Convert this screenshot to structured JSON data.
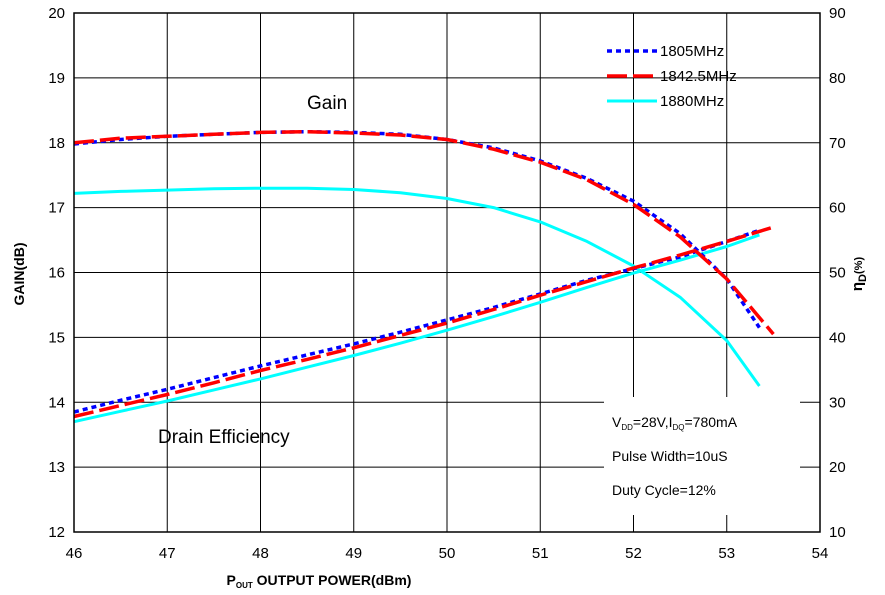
{
  "chart_data": {
    "type": "line",
    "title": "",
    "xlabel": {
      "main": "P",
      "sub": "OUT",
      "rest": " OUTPUT POWER(dBm)"
    },
    "ylabel_left": "GAIN(dB)",
    "ylabel_right": {
      "main": "η",
      "sub": "D",
      "rest": "(%)"
    },
    "xlim": [
      46,
      54
    ],
    "ylim_left": [
      12,
      20
    ],
    "ylim_right": [
      10,
      90
    ],
    "x_ticks": [
      "46",
      "47",
      "48",
      "49",
      "50",
      "51",
      "52",
      "53",
      "54"
    ],
    "y_left_ticks": [
      "12",
      "13",
      "14",
      "15",
      "16",
      "17",
      "18",
      "19",
      "20"
    ],
    "y_right_ticks": [
      "10",
      "20",
      "30",
      "40",
      "50",
      "60",
      "70",
      "80",
      "90"
    ],
    "grid": true,
    "legend_position": "top-right",
    "annotations": {
      "gain": "Gain",
      "efficiency": "Drain Efficiency"
    },
    "conditions": [
      {
        "parts": [
          {
            "t": "V",
            "s": false
          },
          {
            "t": "DD",
            "s": true
          },
          {
            "t": "=28V,I",
            "s": false
          },
          {
            "t": "DQ",
            "s": true
          },
          {
            "t": "=780mA",
            "s": false
          }
        ]
      },
      {
        "parts": [
          {
            "t": "Pulse Width=10uS",
            "s": false
          }
        ]
      },
      {
        "parts": [
          {
            "t": "Duty Cycle=12%",
            "s": false
          }
        ]
      }
    ],
    "series": [
      {
        "name": "1805MHz",
        "color": "#0000ff",
        "style": "dotted",
        "gain": [
          [
            46,
            17.98
          ],
          [
            46.5,
            18.05
          ],
          [
            47,
            18.1
          ],
          [
            47.5,
            18.13
          ],
          [
            48,
            18.16
          ],
          [
            48.5,
            18.17
          ],
          [
            49,
            18.16
          ],
          [
            49.5,
            18.13
          ],
          [
            50,
            18.05
          ],
          [
            50.5,
            17.92
          ],
          [
            51,
            17.72
          ],
          [
            51.5,
            17.45
          ],
          [
            52,
            17.1
          ],
          [
            52.5,
            16.6
          ],
          [
            53,
            15.9
          ],
          [
            53.35,
            15.15
          ]
        ],
        "efficiency": [
          [
            46,
            28.5
          ],
          [
            46.5,
            30.3
          ],
          [
            47,
            32.0
          ],
          [
            47.5,
            33.8
          ],
          [
            48,
            35.6
          ],
          [
            48.5,
            37.3
          ],
          [
            49,
            39.0
          ],
          [
            49.5,
            40.8
          ],
          [
            50,
            42.7
          ],
          [
            50.5,
            44.6
          ],
          [
            51,
            46.7
          ],
          [
            51.5,
            48.8
          ],
          [
            52,
            50.6
          ],
          [
            52.5,
            52.4
          ],
          [
            53,
            54.8
          ],
          [
            53.35,
            56.5
          ]
        ]
      },
      {
        "name": "1842.5MHz",
        "color": "#ff0000",
        "style": "dashed",
        "gain": [
          [
            46,
            18.0
          ],
          [
            46.5,
            18.07
          ],
          [
            47,
            18.1
          ],
          [
            47.5,
            18.13
          ],
          [
            48,
            18.16
          ],
          [
            48.5,
            18.17
          ],
          [
            49,
            18.15
          ],
          [
            49.5,
            18.12
          ],
          [
            50,
            18.05
          ],
          [
            50.5,
            17.9
          ],
          [
            51,
            17.7
          ],
          [
            51.5,
            17.43
          ],
          [
            52,
            17.05
          ],
          [
            52.5,
            16.55
          ],
          [
            53,
            15.9
          ],
          [
            53.5,
            15.05
          ]
        ],
        "efficiency": [
          [
            46,
            27.8
          ],
          [
            46.5,
            29.5
          ],
          [
            47,
            31.2
          ],
          [
            47.5,
            33.0
          ],
          [
            48,
            34.9
          ],
          [
            48.5,
            36.6
          ],
          [
            49,
            38.4
          ],
          [
            49.5,
            40.3
          ],
          [
            50,
            42.2
          ],
          [
            50.5,
            44.3
          ],
          [
            51,
            46.5
          ],
          [
            51.5,
            48.6
          ],
          [
            52,
            50.7
          ],
          [
            52.5,
            52.7
          ],
          [
            53,
            54.8
          ],
          [
            53.5,
            57.0
          ]
        ]
      },
      {
        "name": "1880MHz",
        "color": "#00ffff",
        "style": "solid",
        "gain": [
          [
            46,
            17.22
          ],
          [
            46.5,
            17.25
          ],
          [
            47,
            17.27
          ],
          [
            47.5,
            17.29
          ],
          [
            48,
            17.3
          ],
          [
            48.5,
            17.3
          ],
          [
            49,
            17.28
          ],
          [
            49.5,
            17.23
          ],
          [
            50,
            17.14
          ],
          [
            50.5,
            17.0
          ],
          [
            51,
            16.78
          ],
          [
            51.5,
            16.48
          ],
          [
            52,
            16.1
          ],
          [
            52.5,
            15.62
          ],
          [
            53,
            14.95
          ],
          [
            53.35,
            14.25
          ]
        ],
        "efficiency": [
          [
            46,
            27.0
          ],
          [
            46.5,
            28.6
          ],
          [
            47,
            30.2
          ],
          [
            47.5,
            31.9
          ],
          [
            48,
            33.6
          ],
          [
            48.5,
            35.4
          ],
          [
            49,
            37.2
          ],
          [
            49.5,
            39.1
          ],
          [
            50,
            41.1
          ],
          [
            50.5,
            43.2
          ],
          [
            51,
            45.4
          ],
          [
            51.5,
            47.7
          ],
          [
            52,
            49.9
          ],
          [
            52.5,
            51.9
          ],
          [
            53,
            54.0
          ],
          [
            53.35,
            55.8
          ]
        ]
      }
    ]
  }
}
